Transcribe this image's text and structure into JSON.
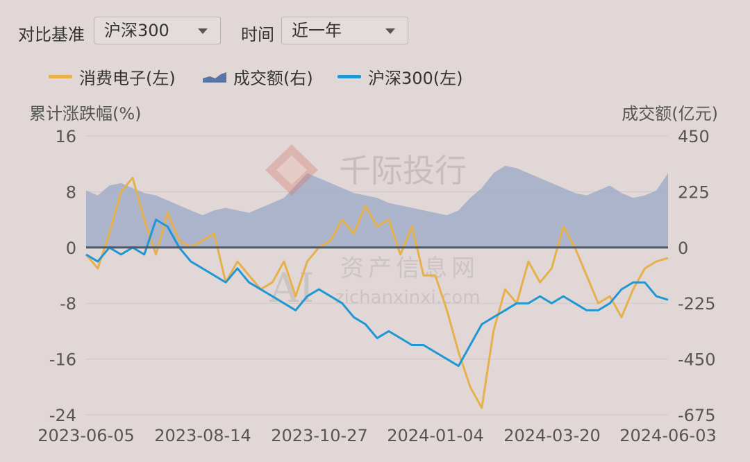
{
  "controls": {
    "benchmark_label": "对比基准",
    "benchmark_value": "沪深300",
    "period_label": "时间",
    "period_value": "近一年"
  },
  "legend": {
    "items": [
      {
        "label": "消费电子(左)",
        "color": "#e6b04a",
        "type": "line"
      },
      {
        "label": "成交额(右)",
        "color": "#8fa0c1",
        "type": "area"
      },
      {
        "label": "沪深300(左)",
        "color": "#1f97d4",
        "type": "line"
      }
    ]
  },
  "watermark": {
    "brand": "千际投行",
    "site_cn": "资产信息网",
    "site_en": "zichanxinxi.com",
    "logo_text": "AI"
  },
  "colors": {
    "background": "#e0d7d6",
    "consumer_electronics": "#e6b04a",
    "hs300": "#1f97d4",
    "volume": "#9aa8c6",
    "zero_line": "#4a5a6a",
    "grid": "#cfc7c6"
  },
  "chart_data": {
    "type": "line",
    "title": "",
    "ylabel": "累计涨跌幅(%)",
    "y2label": "成交额(亿元)",
    "ylim": [
      -24,
      16
    ],
    "y2lim": [
      -675,
      450
    ],
    "yticks": [
      "16",
      "8",
      "0",
      "-8",
      "-16",
      "-24"
    ],
    "y2ticks": [
      "450",
      "225",
      "0",
      "-225",
      "-450",
      "-675"
    ],
    "xticks": [
      "2023-06-05",
      "2023-08-14",
      "2023-10-27",
      "2024-01-04",
      "2024-03-20",
      "2024-06-03"
    ],
    "grid": true,
    "legend_position": "top-left",
    "x": [
      "2023-06-05",
      "2023-06-12",
      "2023-06-19",
      "2023-06-26",
      "2023-07-03",
      "2023-07-10",
      "2023-07-17",
      "2023-07-24",
      "2023-07-31",
      "2023-08-07",
      "2023-08-14",
      "2023-08-21",
      "2023-08-28",
      "2023-09-04",
      "2023-09-11",
      "2023-09-18",
      "2023-09-25",
      "2023-10-09",
      "2023-10-16",
      "2023-10-23",
      "2023-10-30",
      "2023-11-06",
      "2023-11-13",
      "2023-11-20",
      "2023-11-27",
      "2023-12-04",
      "2023-12-11",
      "2023-12-18",
      "2023-12-25",
      "2024-01-02",
      "2024-01-08",
      "2024-01-15",
      "2024-01-22",
      "2024-01-29",
      "2024-02-05",
      "2024-02-19",
      "2024-02-26",
      "2024-03-04",
      "2024-03-11",
      "2024-03-18",
      "2024-03-25",
      "2024-04-01",
      "2024-04-08",
      "2024-04-15",
      "2024-04-22",
      "2024-04-29",
      "2024-05-06",
      "2024-05-13",
      "2024-05-20",
      "2024-05-27",
      "2024-06-03"
    ],
    "series": [
      {
        "name": "消费电子(左)",
        "axis": "left",
        "values": [
          -1,
          -3,
          2,
          8,
          10,
          4,
          -1,
          5,
          1,
          0,
          1,
          2,
          -5,
          -2,
          -4,
          -6,
          -5,
          -2,
          -7,
          -2,
          0,
          1,
          4,
          2,
          6,
          3,
          4,
          -1,
          3,
          -4,
          -4,
          -9,
          -15,
          -20,
          -23,
          -12,
          -6,
          -8,
          -2,
          -5,
          -3,
          3,
          0,
          -4,
          -8,
          -7,
          -10,
          -6,
          -3,
          -2,
          -1.5
        ]
      },
      {
        "name": "沪深300(左)",
        "axis": "right_unused",
        "values": [
          -1,
          -2,
          0,
          -1,
          0,
          -1,
          4,
          3,
          0,
          -2,
          -3,
          -4,
          -5,
          -3,
          -5,
          -6,
          -7,
          -8,
          -9,
          -7,
          -6,
          -7,
          -8,
          -10,
          -11,
          -13,
          -12,
          -13,
          -14,
          -14,
          -15,
          -16,
          -17,
          -14,
          -11,
          -10,
          -9,
          -8,
          -8,
          -7,
          -8,
          -7,
          -8,
          -9,
          -9,
          -8,
          -6,
          -5,
          -5,
          -7,
          -7.5
        ]
      },
      {
        "name": "成交额(右)",
        "axis": "right",
        "values": [
          230,
          210,
          250,
          260,
          240,
          220,
          210,
          190,
          170,
          150,
          130,
          150,
          160,
          150,
          140,
          160,
          180,
          200,
          250,
          300,
          280,
          260,
          240,
          220,
          210,
          200,
          180,
          170,
          160,
          150,
          140,
          130,
          150,
          200,
          240,
          300,
          330,
          320,
          300,
          280,
          260,
          240,
          220,
          210,
          230,
          250,
          220,
          200,
          210,
          230,
          300
        ]
      }
    ]
  }
}
